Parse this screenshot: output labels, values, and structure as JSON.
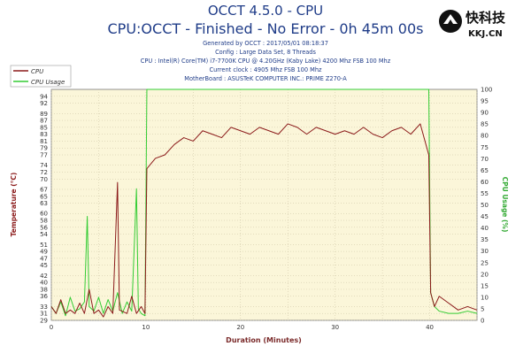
{
  "chart_data": {
    "type": "line",
    "title": "OCCT 4.5.0 - CPU",
    "subtitle": "CPU:OCCT - Finished - No Error - 0h 45m 00s",
    "info_lines": [
      "Generated by OCCT : 2017/05/01 08:18:37",
      "Config : Large Data Set, 8 Threads",
      "CPU : Intel(R) Core(TM) i7-7700K CPU @ 4.20GHz (Kaby Lake) 4200 Mhz FSB 100 Mhz",
      "Current clock : 4905 Mhz FSB 100 Mhz",
      "MotherBoard : ASUSTeK COMPUTER INC.: PRIME Z270-A"
    ],
    "xlabel": "Duration (Minutes)",
    "ylabel_left": "Temperature (°C)",
    "ylabel_right": "CPU Usage (%)",
    "xlim": [
      0,
      45
    ],
    "x_ticks": [
      "0",
      "10",
      "20",
      "30",
      "40"
    ],
    "ylim_left": [
      29,
      96
    ],
    "y_ticks_left": [
      "29",
      "31",
      "33",
      "36",
      "38",
      "40",
      "42",
      "45",
      "47",
      "49",
      "51",
      "54",
      "56",
      "58",
      "60",
      "63",
      "65",
      "67",
      "70",
      "72",
      "74",
      "77",
      "79",
      "81",
      "83",
      "85",
      "87",
      "89",
      "92",
      "94"
    ],
    "ylim_right": [
      0,
      100
    ],
    "y_ticks_right": [
      "0",
      "5",
      "10",
      "15",
      "20",
      "25",
      "30",
      "35",
      "40",
      "45",
      "50",
      "55",
      "60",
      "65",
      "70",
      "75",
      "80",
      "85",
      "90",
      "95",
      "100"
    ],
    "grid": true,
    "legend_position": "top-left",
    "series": [
      {
        "name": "CPU",
        "axis": "left",
        "color": "#8b1a1a",
        "points": [
          [
            0,
            33
          ],
          [
            0.5,
            31
          ],
          [
            1,
            35
          ],
          [
            1.5,
            31
          ],
          [
            2,
            32
          ],
          [
            2.5,
            31
          ],
          [
            3,
            34
          ],
          [
            3.5,
            31
          ],
          [
            4,
            38
          ],
          [
            4.5,
            31
          ],
          [
            5,
            32
          ],
          [
            5.5,
            30
          ],
          [
            6,
            33
          ],
          [
            6.5,
            31
          ],
          [
            7,
            69
          ],
          [
            7.2,
            32
          ],
          [
            8,
            31
          ],
          [
            8.5,
            36
          ],
          [
            9,
            31
          ],
          [
            9.5,
            33
          ],
          [
            9.9,
            31
          ],
          [
            10.1,
            73
          ],
          [
            11,
            76
          ],
          [
            12,
            77
          ],
          [
            13,
            80
          ],
          [
            14,
            82
          ],
          [
            15,
            81
          ],
          [
            16,
            84
          ],
          [
            17,
            83
          ],
          [
            18,
            82
          ],
          [
            19,
            85
          ],
          [
            20,
            84
          ],
          [
            21,
            83
          ],
          [
            22,
            85
          ],
          [
            23,
            84
          ],
          [
            24,
            83
          ],
          [
            25,
            86
          ],
          [
            26,
            85
          ],
          [
            27,
            83
          ],
          [
            28,
            85
          ],
          [
            29,
            84
          ],
          [
            30,
            83
          ],
          [
            31,
            84
          ],
          [
            32,
            83
          ],
          [
            33,
            85
          ],
          [
            34,
            83
          ],
          [
            35,
            82
          ],
          [
            36,
            84
          ],
          [
            37,
            85
          ],
          [
            38,
            83
          ],
          [
            39,
            86
          ],
          [
            39.9,
            77
          ],
          [
            40.1,
            37
          ],
          [
            40.5,
            33
          ],
          [
            41,
            36
          ],
          [
            42,
            34
          ],
          [
            43,
            32
          ],
          [
            44,
            33
          ],
          [
            45,
            32
          ]
        ]
      },
      {
        "name": "CPU Usage",
        "axis": "right",
        "color": "#33cc33",
        "points": [
          [
            0,
            6
          ],
          [
            0.5,
            3
          ],
          [
            1,
            8
          ],
          [
            1.5,
            2
          ],
          [
            2,
            10
          ],
          [
            2.5,
            4
          ],
          [
            3,
            5
          ],
          [
            3.5,
            8
          ],
          [
            3.8,
            45
          ],
          [
            4,
            6
          ],
          [
            4.5,
            4
          ],
          [
            5,
            10
          ],
          [
            5.5,
            3
          ],
          [
            6,
            9
          ],
          [
            6.5,
            4
          ],
          [
            7,
            12
          ],
          [
            7.5,
            3
          ],
          [
            8,
            8
          ],
          [
            8.5,
            4
          ],
          [
            9,
            57
          ],
          [
            9.2,
            5
          ],
          [
            9.5,
            3
          ],
          [
            9.9,
            2
          ],
          [
            10.1,
            100
          ],
          [
            39.9,
            100
          ],
          [
            40.1,
            12
          ],
          [
            40.5,
            6
          ],
          [
            41,
            4
          ],
          [
            42,
            3
          ],
          [
            43,
            3
          ],
          [
            44,
            4
          ],
          [
            45,
            3
          ]
        ]
      }
    ]
  },
  "watermark": {
    "brand_cn": "快科技",
    "brand_en": "KKJ.CN"
  }
}
